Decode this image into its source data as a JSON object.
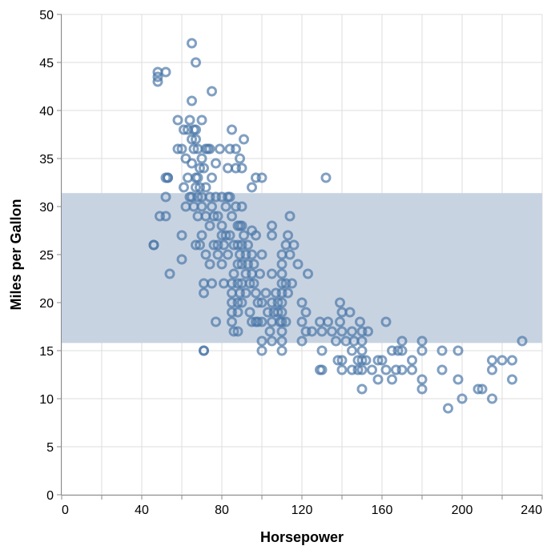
{
  "chart_data": {
    "type": "scatter",
    "xlabel": "Horsepower",
    "ylabel": "Miles per Gallon",
    "xlim": [
      0,
      240
    ],
    "ylim": [
      0,
      50
    ],
    "x_ticks": [
      0,
      40,
      80,
      120,
      160,
      200,
      240
    ],
    "y_ticks": [
      0,
      5,
      10,
      15,
      20,
      25,
      30,
      35,
      40,
      45,
      50
    ],
    "grid": true,
    "band": {
      "y_min": 15.8,
      "y_max": 31.4,
      "color": "#c8d3e2"
    },
    "point_color": "#4c78a8",
    "marker": "hollow-circle",
    "points": [
      [
        46,
        26
      ],
      [
        46,
        26
      ],
      [
        48,
        43
      ],
      [
        48,
        44
      ],
      [
        48,
        43.5
      ],
      [
        49,
        29
      ],
      [
        52,
        44
      ],
      [
        52,
        29
      ],
      [
        52,
        31
      ],
      [
        52,
        33
      ],
      [
        53,
        33
      ],
      [
        53,
        33
      ],
      [
        54,
        23
      ],
      [
        58,
        39
      ],
      [
        58,
        36
      ],
      [
        60,
        36
      ],
      [
        60,
        27
      ],
      [
        60,
        24.5
      ],
      [
        61,
        32
      ],
      [
        61,
        38
      ],
      [
        62,
        30
      ],
      [
        62,
        35
      ],
      [
        63,
        38
      ],
      [
        63,
        33
      ],
      [
        64,
        39
      ],
      [
        64,
        31
      ],
      [
        65,
        47
      ],
      [
        65,
        41
      ],
      [
        65,
        37
      ],
      [
        65,
        34.5
      ],
      [
        65,
        31
      ],
      [
        66,
        38
      ],
      [
        66,
        36
      ],
      [
        66,
        30
      ],
      [
        67,
        45
      ],
      [
        67,
        37
      ],
      [
        67,
        38
      ],
      [
        67,
        32
      ],
      [
        67,
        33
      ],
      [
        67,
        26
      ],
      [
        68,
        36
      ],
      [
        68,
        33
      ],
      [
        68,
        31
      ],
      [
        68,
        29
      ],
      [
        69,
        26
      ],
      [
        69,
        34
      ],
      [
        69,
        32
      ],
      [
        70,
        39
      ],
      [
        70,
        35
      ],
      [
        70,
        31
      ],
      [
        70,
        30
      ],
      [
        70,
        27
      ],
      [
        71,
        15
      ],
      [
        71,
        15
      ],
      [
        71,
        22
      ],
      [
        71,
        21
      ],
      [
        71,
        34
      ],
      [
        72,
        36
      ],
      [
        72,
        32
      ],
      [
        72,
        25
      ],
      [
        72,
        29
      ],
      [
        73,
        36
      ],
      [
        74,
        36
      ],
      [
        74,
        31
      ],
      [
        74,
        28
      ],
      [
        74,
        24
      ],
      [
        75,
        42
      ],
      [
        75,
        33
      ],
      [
        75,
        30
      ],
      [
        75,
        22
      ],
      [
        76,
        29
      ],
      [
        76,
        26
      ],
      [
        77,
        34.5
      ],
      [
        77,
        31
      ],
      [
        77,
        18
      ],
      [
        78,
        29
      ],
      [
        78,
        26
      ],
      [
        78,
        25
      ],
      [
        79,
        36
      ],
      [
        80,
        31
      ],
      [
        80,
        27
      ],
      [
        80,
        24
      ],
      [
        80,
        28
      ],
      [
        81,
        22
      ],
      [
        81,
        26
      ],
      [
        82,
        30
      ],
      [
        82,
        27
      ],
      [
        83,
        34
      ],
      [
        83,
        31
      ],
      [
        83,
        25
      ],
      [
        84,
        36
      ],
      [
        84,
        31
      ],
      [
        84,
        27
      ],
      [
        85,
        38
      ],
      [
        85,
        29
      ],
      [
        85,
        22
      ],
      [
        85,
        21
      ],
      [
        85,
        20
      ],
      [
        85,
        19
      ],
      [
        85,
        18
      ],
      [
        86,
        17
      ],
      [
        86,
        23
      ],
      [
        86,
        26
      ],
      [
        87,
        36
      ],
      [
        87,
        34
      ],
      [
        87,
        30
      ],
      [
        88,
        28
      ],
      [
        88,
        26
      ],
      [
        88,
        24
      ],
      [
        88,
        22
      ],
      [
        88,
        20
      ],
      [
        88,
        19
      ],
      [
        88,
        17
      ],
      [
        89,
        35
      ],
      [
        89,
        28
      ],
      [
        89,
        25
      ],
      [
        89,
        21
      ],
      [
        90,
        34
      ],
      [
        90,
        30
      ],
      [
        90,
        28
      ],
      [
        90,
        26
      ],
      [
        90,
        24
      ],
      [
        90,
        22
      ],
      [
        90,
        20
      ],
      [
        91,
        37
      ],
      [
        91,
        27
      ],
      [
        92,
        25
      ],
      [
        92,
        23
      ],
      [
        92,
        21
      ],
      [
        93,
        26
      ],
      [
        93,
        24
      ],
      [
        94,
        22
      ],
      [
        94,
        19
      ],
      [
        95,
        32
      ],
      [
        95,
        27.5
      ],
      [
        95,
        25
      ],
      [
        95,
        23
      ],
      [
        95,
        18
      ],
      [
        96,
        24
      ],
      [
        96,
        22
      ],
      [
        97,
        33
      ],
      [
        97,
        27
      ],
      [
        97,
        21
      ],
      [
        97,
        18
      ],
      [
        98,
        20
      ],
      [
        98,
        18
      ],
      [
        99,
        23
      ],
      [
        100,
        33
      ],
      [
        100,
        25
      ],
      [
        100,
        20
      ],
      [
        100,
        18
      ],
      [
        100,
        16
      ],
      [
        100,
        15
      ],
      [
        102,
        21
      ],
      [
        103,
        19
      ],
      [
        104,
        17
      ],
      [
        105,
        28
      ],
      [
        105,
        27
      ],
      [
        105,
        23
      ],
      [
        105,
        20
      ],
      [
        105,
        18
      ],
      [
        105,
        16
      ],
      [
        106,
        19
      ],
      [
        107,
        21
      ],
      [
        108,
        20
      ],
      [
        108,
        19
      ],
      [
        109,
        18
      ],
      [
        110,
        25
      ],
      [
        110,
        24
      ],
      [
        110,
        23
      ],
      [
        110,
        22
      ],
      [
        110,
        21
      ],
      [
        110,
        20
      ],
      [
        110,
        19
      ],
      [
        110,
        18
      ],
      [
        110,
        17
      ],
      [
        110,
        16
      ],
      [
        110,
        15
      ],
      [
        112,
        26
      ],
      [
        112,
        22
      ],
      [
        112,
        18
      ],
      [
        113,
        27
      ],
      [
        113,
        21
      ],
      [
        114,
        29
      ],
      [
        114,
        25
      ],
      [
        115,
        22
      ],
      [
        116,
        26
      ],
      [
        118,
        24
      ],
      [
        120,
        20
      ],
      [
        120,
        18
      ],
      [
        120,
        16
      ],
      [
        122,
        19
      ],
      [
        122,
        17
      ],
      [
        123,
        23
      ],
      [
        125,
        17
      ],
      [
        129,
        13
      ],
      [
        129,
        18
      ],
      [
        130,
        17
      ],
      [
        130,
        15
      ],
      [
        130,
        13
      ],
      [
        132,
        33
      ],
      [
        133,
        18
      ],
      [
        135,
        17
      ],
      [
        137,
        16
      ],
      [
        138,
        14
      ],
      [
        139,
        18
      ],
      [
        139,
        20
      ],
      [
        140,
        19
      ],
      [
        140,
        17
      ],
      [
        140,
        14
      ],
      [
        140,
        13
      ],
      [
        142,
        16
      ],
      [
        144,
        19
      ],
      [
        145,
        17
      ],
      [
        145,
        15
      ],
      [
        145,
        13
      ],
      [
        146,
        16
      ],
      [
        148,
        14
      ],
      [
        148,
        13
      ],
      [
        149,
        18
      ],
      [
        150,
        17
      ],
      [
        150,
        16
      ],
      [
        150,
        15
      ],
      [
        150,
        14
      ],
      [
        150,
        13
      ],
      [
        150,
        11
      ],
      [
        152,
        14
      ],
      [
        153,
        17
      ],
      [
        155,
        13
      ],
      [
        158,
        14
      ],
      [
        158,
        12
      ],
      [
        160,
        14
      ],
      [
        162,
        18
      ],
      [
        162,
        13
      ],
      [
        165,
        15
      ],
      [
        165,
        12
      ],
      [
        167,
        13
      ],
      [
        168,
        15
      ],
      [
        170,
        16
      ],
      [
        170,
        15
      ],
      [
        170,
        13
      ],
      [
        175,
        14
      ],
      [
        175,
        13
      ],
      [
        180,
        16
      ],
      [
        180,
        15
      ],
      [
        180,
        12
      ],
      [
        180,
        11
      ],
      [
        190,
        15
      ],
      [
        190,
        13
      ],
      [
        193,
        9
      ],
      [
        198,
        12
      ],
      [
        198,
        15
      ],
      [
        200,
        10
      ],
      [
        208,
        11
      ],
      [
        210,
        11
      ],
      [
        215,
        14
      ],
      [
        215,
        13
      ],
      [
        215,
        10
      ],
      [
        220,
        14
      ],
      [
        225,
        14
      ],
      [
        225,
        12
      ],
      [
        230,
        16
      ]
    ]
  }
}
